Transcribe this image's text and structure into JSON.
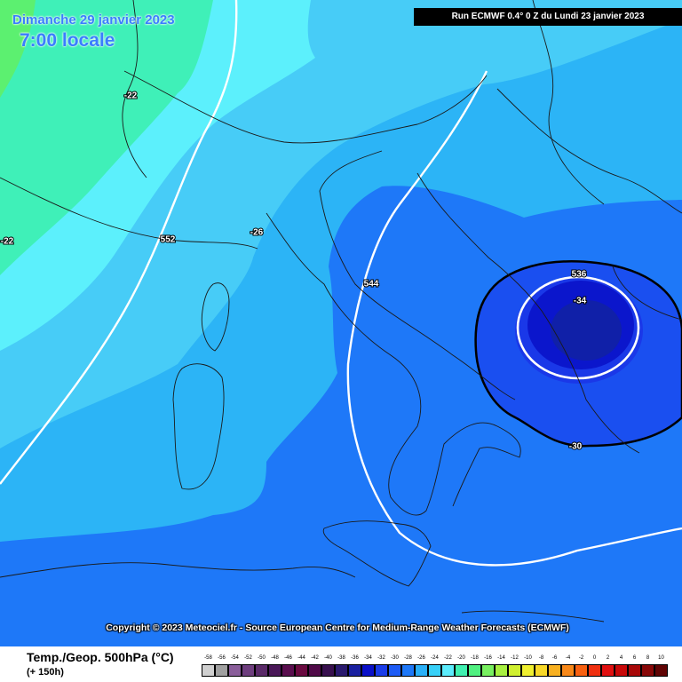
{
  "header": {
    "date": "Dimanche 29 janvier 2023",
    "local_time": "7:00 locale",
    "run_info": "Run ECMWF 0.4° 0 Z du Lundi 23 janvier 2023"
  },
  "copyright": "Copyright © 2023 Meteociel.fr - Source European Centre for Medium-Range Weather Forecasts (ECMWF)",
  "legend": {
    "title": "Temp./Geop. 500hPa (°C)",
    "forecast_hour": "(+ 150h)",
    "steps": [
      {
        "value": "-58",
        "color": "#d0d0d0"
      },
      {
        "value": "-56",
        "color": "#a0a0a0"
      },
      {
        "value": "-54",
        "color": "#8a5e9a"
      },
      {
        "value": "-52",
        "color": "#6e3e7e"
      },
      {
        "value": "-50",
        "color": "#5a2a68"
      },
      {
        "value": "-48",
        "color": "#4a1858"
      },
      {
        "value": "-46",
        "color": "#5a0e4e"
      },
      {
        "value": "-44",
        "color": "#6a0a40"
      },
      {
        "value": "-42",
        "color": "#500a48"
      },
      {
        "value": "-40",
        "color": "#38104e"
      },
      {
        "value": "-38",
        "color": "#2a1a6e"
      },
      {
        "value": "-36",
        "color": "#1a20a0"
      },
      {
        "value": "-34",
        "color": "#0a10c8"
      },
      {
        "value": "-32",
        "color": "#1a3ce8"
      },
      {
        "value": "-30",
        "color": "#1e5cf5"
      },
      {
        "value": "-28",
        "color": "#1e78f8"
      },
      {
        "value": "-26",
        "color": "#2ab0f8"
      },
      {
        "value": "-24",
        "color": "#38d0f8"
      },
      {
        "value": "-22",
        "color": "#5cecfc"
      },
      {
        "value": "-20",
        "color": "#40f0b0"
      },
      {
        "value": "-18",
        "color": "#50f080"
      },
      {
        "value": "-16",
        "color": "#78f060"
      },
      {
        "value": "-14",
        "color": "#a8f040"
      },
      {
        "value": "-12",
        "color": "#d0f030"
      },
      {
        "value": "-10",
        "color": "#f0f030"
      },
      {
        "value": "-8",
        "color": "#f8d828"
      },
      {
        "value": "-6",
        "color": "#f8b020"
      },
      {
        "value": "-4",
        "color": "#f88818"
      },
      {
        "value": "-2",
        "color": "#f86010"
      },
      {
        "value": "0",
        "color": "#f03010"
      },
      {
        "value": "2",
        "color": "#e01010"
      },
      {
        "value": "4",
        "color": "#c80808"
      },
      {
        "value": "6",
        "color": "#a80808"
      },
      {
        "value": "8",
        "color": "#880808"
      },
      {
        "value": "10",
        "color": "#600404"
      }
    ]
  },
  "map": {
    "temperature_labels": [
      "-22",
      "-22",
      "-26",
      "-34",
      "-30"
    ],
    "geopotential_labels": [
      "552",
      "544",
      "536"
    ]
  }
}
